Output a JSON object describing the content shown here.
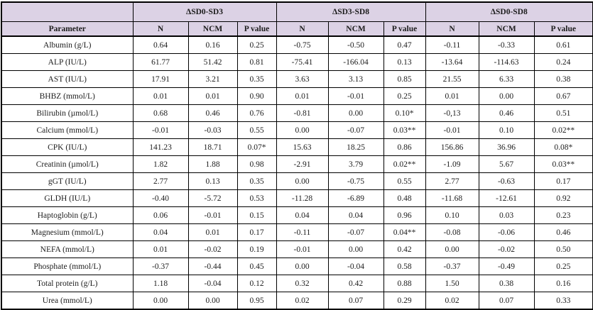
{
  "table": {
    "corner_label": "",
    "parameter_header": "Parameter",
    "column_groups": [
      {
        "label": "ΔSD0-SD3",
        "subcolumns": [
          "N",
          "NCM",
          "P value"
        ]
      },
      {
        "label": "ΔSD3-SD8",
        "subcolumns": [
          "N",
          "NCM",
          "P value"
        ]
      },
      {
        "label": "ΔSD0-SD8",
        "subcolumns": [
          "N",
          "NCM",
          "P value"
        ]
      }
    ],
    "rows": [
      {
        "parameter": "Albumin (g/L)",
        "values": [
          "0.64",
          "0.16",
          "0.25",
          "-0.75",
          "-0.50",
          "0.47",
          "-0.11",
          "-0.33",
          "0.61"
        ]
      },
      {
        "parameter": "ALP (IU/L)",
        "values": [
          "61.77",
          "51.42",
          "0.81",
          "-75.41",
          "-166.04",
          "0.13",
          "-13.64",
          "-114.63",
          "0.24"
        ]
      },
      {
        "parameter": "AST (IU/L)",
        "values": [
          "17.91",
          "3.21",
          "0.35",
          "3.63",
          "3.13",
          "0.85",
          "21.55",
          "6.33",
          "0.38"
        ]
      },
      {
        "parameter": "BHBZ (mmol/L)",
        "values": [
          "0.01",
          "0.01",
          "0.90",
          "0.01",
          "-0.01",
          "0.25",
          "0.01",
          "0.00",
          "0.67"
        ]
      },
      {
        "parameter": "Bilirubin (µmol/L)",
        "values": [
          "0.68",
          "0.46",
          "0.76",
          "-0.81",
          "0.00",
          "0.10*",
          "-0,13",
          "0.46",
          "0.51"
        ]
      },
      {
        "parameter": "Calcium (mmol/L)",
        "values": [
          "-0.01",
          "-0.03",
          "0.55",
          "0.00",
          "-0.07",
          "0.03**",
          "-0.01",
          "0.10",
          "0.02**"
        ]
      },
      {
        "parameter": "CPK (IU/L)",
        "values": [
          "141.23",
          "18.71",
          "0.07*",
          "15.63",
          "18.25",
          "0.86",
          "156.86",
          "36.96",
          "0.08*"
        ]
      },
      {
        "parameter": "Creatinin (µmol/L)",
        "values": [
          "1.82",
          "1.88",
          "0.98",
          "-2.91",
          "3.79",
          "0.02**",
          "-1.09",
          "5.67",
          "0.03**"
        ]
      },
      {
        "parameter": "gGT (IU/L)",
        "values": [
          "2.77",
          "0.13",
          "0.35",
          "0.00",
          "-0.75",
          "0.55",
          "2.77",
          "-0.63",
          "0.17"
        ]
      },
      {
        "parameter": "GLDH (IU/L)",
        "values": [
          "-0.40",
          "-5.72",
          "0.53",
          "-11.28",
          "-6.89",
          "0.48",
          "-11.68",
          "-12.61",
          "0.92"
        ]
      },
      {
        "parameter": "Haptoglobin (g/L)",
        "values": [
          "0.06",
          "-0.01",
          "0.15",
          "0.04",
          "0.04",
          "0.96",
          "0.10",
          "0.03",
          "0.23"
        ]
      },
      {
        "parameter": "Magnesium (mmol/L)",
        "values": [
          "0.04",
          "0.01",
          "0.17",
          "-0.11",
          "-0.07",
          "0.04**",
          "-0.08",
          "-0.06",
          "0.46"
        ]
      },
      {
        "parameter": "NEFA (mmol/L)",
        "values": [
          "0.01",
          "-0.02",
          "0.19",
          "-0.01",
          "0.00",
          "0.42",
          "0.00",
          "-0.02",
          "0.50"
        ]
      },
      {
        "parameter": "Phosphate (mmol/L)",
        "values": [
          "-0.37",
          "-0.44",
          "0.45",
          "0.00",
          "-0.04",
          "0.58",
          "-0.37",
          "-0.49",
          "0.25"
        ]
      },
      {
        "parameter": "Total protein (g/L)",
        "values": [
          "1.18",
          "-0.04",
          "0.12",
          "0.32",
          "0.42",
          "0.88",
          "1.50",
          "0.38",
          "0.16"
        ]
      },
      {
        "parameter": "Urea (mmol/L)",
        "values": [
          "0.00",
          "0.00",
          "0.95",
          "0.02",
          "0.07",
          "0.29",
          "0.02",
          "0.07",
          "0.33"
        ]
      }
    ]
  },
  "colors": {
    "header_bg": "#dcd2e5",
    "border": "#000000",
    "text": "#1c1c1c"
  }
}
